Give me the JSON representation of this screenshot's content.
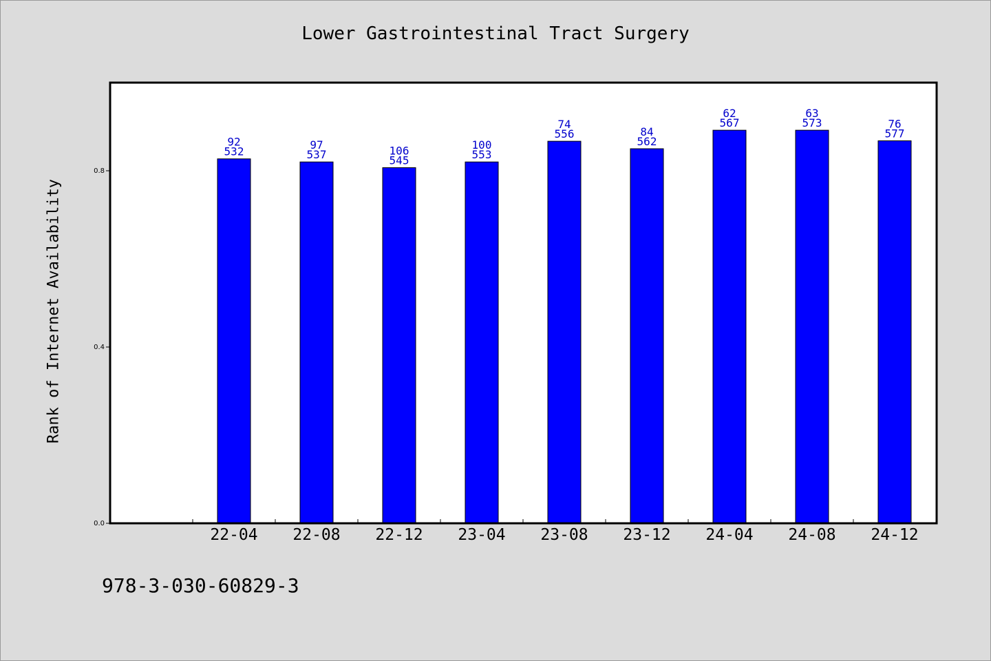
{
  "footer": {
    "identifier": "978-3-030-60829-3"
  },
  "chart_data": {
    "type": "bar",
    "title": "Lower Gastrointestinal Tract Surgery",
    "xlabel": "",
    "ylabel": "Rank of Internet Availability",
    "categories": [
      "22-04",
      "22-08",
      "22-12",
      "23-04",
      "23-08",
      "23-12",
      "24-04",
      "24-08",
      "24-12"
    ],
    "values": [
      0.827,
      0.82,
      0.807,
      0.82,
      0.867,
      0.85,
      0.892,
      0.892,
      0.868
    ],
    "label_top": [
      "92",
      "97",
      "106",
      "100",
      "74",
      "84",
      "62",
      "63",
      "76"
    ],
    "label_bottom": [
      "532",
      "537",
      "545",
      "553",
      "556",
      "562",
      "567",
      "573",
      "577"
    ],
    "y_ticks": [
      0.0,
      0.4,
      0.8
    ],
    "y_tick_labels": [
      "0.0",
      "0.4",
      "0.8"
    ],
    "ylim": [
      0,
      1.0
    ],
    "grid": false,
    "legend": "none",
    "colors": {
      "bar": "#0000ff",
      "bar_edge": "#000000",
      "label": "#0000cc",
      "plot_bg": "#ffffff",
      "page_bg": "#dcdcdc"
    }
  }
}
